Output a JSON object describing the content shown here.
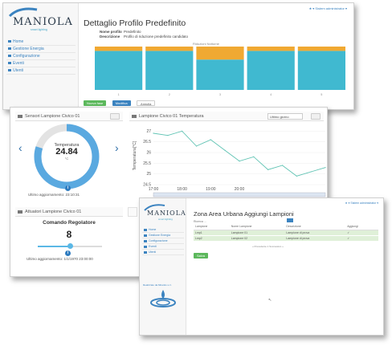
{
  "brand": {
    "name": "MANIOLA",
    "tagline": "smart lighting"
  },
  "colors": {
    "accent": "#3b83c0",
    "bar_top": "#f0a932",
    "bar_bottom": "#40b9d0",
    "gauge": "#5aa9e0",
    "green": "#5cb85c"
  },
  "screen1": {
    "title": "Dettaglio Profilo Predefinito",
    "topbar": "★ ▾     Sistem administrator ▾",
    "fields": [
      {
        "label": "Nome profilo",
        "value": "Predefinito"
      },
      {
        "label": "Descrizione",
        "value": "Profilo di riduzione predefinito candidato"
      }
    ],
    "menu": [
      "Home",
      "Gestione Energia",
      "Configurazione",
      "Eventi",
      "Utenti"
    ],
    "chart_title": "Riduzioni Notturne",
    "buttons": [
      {
        "label": "Nuova fase",
        "color": "#5cb85c"
      },
      {
        "label": "Modifica",
        "color": "#3b83c0"
      },
      {
        "label": "Annulla",
        "color": "#ffffff"
      }
    ],
    "chart_data": {
      "type": "bar",
      "categories": [
        "1",
        "2",
        "3",
        "4",
        "5"
      ],
      "series": [
        {
          "values": [
            90,
            90,
            70,
            90,
            90
          ]
        },
        {
          "values": [
            10,
            10,
            30,
            10,
            10
          ]
        }
      ],
      "ylim": [
        0,
        100
      ]
    }
  },
  "screen2": {
    "sensor_panel": "Sensori Lampione Civico 01",
    "temp_label": "Temperatura",
    "temp_value": "24.84",
    "temp_unit": "°C",
    "gauge_fill": 0.8,
    "last_update_1": "Ultimo aggiornamento: 23:10:31",
    "chart_panel": "Lampione Civico 01 Temperatura",
    "range_select": "Ultimo giorno",
    "actuator_panel": "Attuatori Lampione Civico 01",
    "command_label": "Comando Regolatore",
    "command_value": "8",
    "slider_level": 0.5,
    "last_update_2": "Ultimo aggiornamento: 1/1/1970 23:00:00",
    "chart_data": {
      "type": "line",
      "ylabel": "Temperatura[°C]",
      "x": [
        "17:00",
        "17:30",
        "18:00",
        "18:30",
        "19:00",
        "19:30",
        "20:00",
        "20:30",
        "21:00",
        "21:30",
        "22:00",
        "22:30",
        "23:00"
      ],
      "xticks": [
        "17:00",
        "18:00",
        "19:00",
        "20:00"
      ],
      "yticks": [
        "27",
        "26.5",
        "26",
        "25.5",
        "25",
        "24.5"
      ],
      "values": [
        26.9,
        26.8,
        27.0,
        26.3,
        26.6,
        26.1,
        25.6,
        25.8,
        25.2,
        25.4,
        24.9,
        25.1,
        25.3
      ],
      "ylim": [
        24.5,
        27.2
      ]
    }
  },
  "screen3": {
    "title": "Zona Area Urbana Aggiungi Lampioni",
    "topbar": "★ ▾     Sistem administrator ▾",
    "menu": [
      "Home",
      "Gestione Energia",
      "Configurazione",
      "Eventi",
      "Utenti"
    ],
    "toolbar": "Ricerca ...",
    "table": {
      "headers": [
        "Lampione",
        "Nome Lampione",
        "Descrizione",
        "Aggiungi"
      ],
      "rows": [
        [
          "Lmp1",
          "Lampione 01",
          "Lampione di prova",
          "✓"
        ],
        [
          "Lmp2",
          "Lampione 02",
          "Lampione di prova",
          "✓"
        ]
      ]
    },
    "pager": "« Precedente   1   Successivo »",
    "save_label": "Salva",
    "logo2_caption": "Realizzato da Mirantis s.r.l."
  }
}
